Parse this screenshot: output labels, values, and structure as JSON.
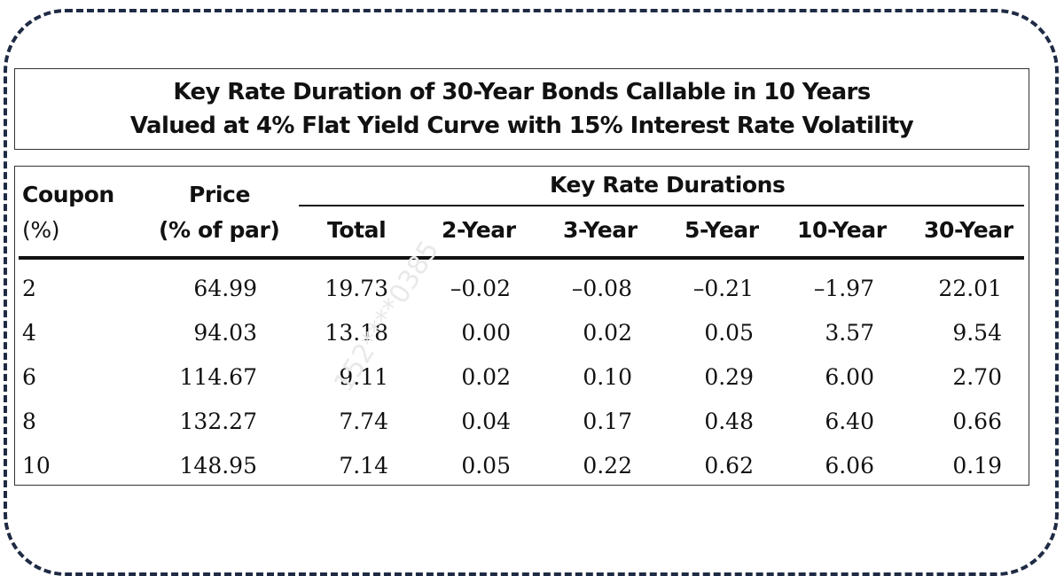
{
  "title": {
    "line1": "Key Rate Duration of 30-Year Bonds Callable in 10 Years",
    "line2": "Valued at 4% Flat Yield Curve with 15% Interest Rate Volatility"
  },
  "table": {
    "group_header": "Key Rate Durations",
    "headers": {
      "coupon": [
        "Coupon",
        "(%)"
      ],
      "price": [
        "Price",
        "(% of par)"
      ],
      "total": "Total",
      "y2": "2-Year",
      "y3": "3-Year",
      "y5": "5-Year",
      "y10": "10-Year",
      "y30": "30-Year"
    },
    "rows": [
      [
        "2",
        "64.99",
        "19.73",
        "–0.02",
        "–0.08",
        "–0.21",
        "–1.97",
        "22.01"
      ],
      [
        "4",
        "94.03",
        "13.18",
        "0.00",
        "0.02",
        "0.05",
        "3.57",
        "9.54"
      ],
      [
        "6",
        "114.67",
        "9.11",
        "0.02",
        "0.10",
        "0.29",
        "6.00",
        "2.70"
      ],
      [
        "8",
        "132.27",
        "7.74",
        "0.04",
        "0.17",
        "0.48",
        "6.40",
        "0.66"
      ],
      [
        "10",
        "148.95",
        "7.14",
        "0.05",
        "0.22",
        "0.62",
        "6.06",
        "0.19"
      ]
    ]
  },
  "watermark": "152****0385"
}
